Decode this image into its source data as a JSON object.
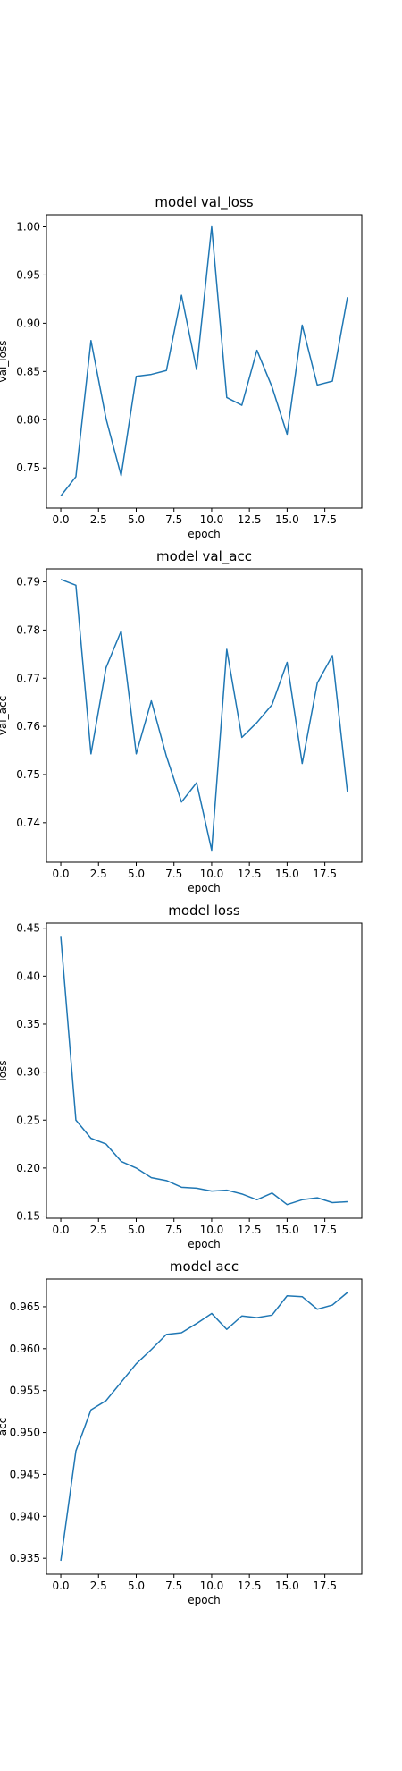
{
  "chart_data": [
    {
      "type": "line",
      "title": "model val_loss",
      "xlabel": "epoch",
      "ylabel": "val_loss",
      "xlim": [
        -0.95,
        19.95
      ],
      "ylim": [
        0.7085,
        1.0125
      ],
      "xticks": [
        "0.0",
        "2.5",
        "5.0",
        "7.5",
        "10.0",
        "12.5",
        "15.0",
        "17.5"
      ],
      "yticks": [
        "0.75",
        "0.80",
        "0.85",
        "0.90",
        "0.95",
        "1.00"
      ],
      "series": [
        {
          "color": "#1f77b4",
          "x": [
            0,
            1,
            2,
            3,
            4,
            5,
            6,
            7,
            8,
            9,
            10,
            11,
            12,
            13,
            14,
            15,
            16,
            17,
            18,
            19
          ],
          "values": [
            0.721,
            0.741,
            0.882,
            0.801,
            0.742,
            0.845,
            0.847,
            0.851,
            0.929,
            0.852,
            1.0,
            0.823,
            0.815,
            0.872,
            0.834,
            0.785,
            0.898,
            0.836,
            0.84,
            0.927
          ]
        }
      ]
    },
    {
      "type": "line",
      "title": "model val_acc",
      "xlabel": "epoch",
      "ylabel": "val_acc",
      "xlim": [
        -0.95,
        19.95
      ],
      "ylim": [
        0.7318,
        0.7927
      ],
      "xticks": [
        "0.0",
        "2.5",
        "5.0",
        "7.5",
        "10.0",
        "12.5",
        "15.0",
        "17.5"
      ],
      "yticks": [
        "0.74",
        "0.75",
        "0.76",
        "0.77",
        "0.78",
        "0.79"
      ],
      "series": [
        {
          "color": "#1f77b4",
          "x": [
            0,
            1,
            2,
            3,
            4,
            5,
            6,
            7,
            8,
            9,
            10,
            11,
            12,
            13,
            14,
            15,
            16,
            17,
            18,
            19
          ],
          "values": [
            0.7905,
            0.7893,
            0.7543,
            0.7722,
            0.7798,
            0.7543,
            0.7653,
            0.7538,
            0.7443,
            0.7483,
            0.7343,
            0.776,
            0.7577,
            0.7608,
            0.7645,
            0.7733,
            0.7523,
            0.769,
            0.7747,
            0.7463
          ]
        }
      ]
    },
    {
      "type": "line",
      "title": "model loss",
      "xlabel": "epoch",
      "ylabel": "loss",
      "xlim": [
        -0.95,
        19.95
      ],
      "ylim": [
        0.1477,
        0.4553
      ],
      "xticks": [
        "0.0",
        "2.5",
        "5.0",
        "7.5",
        "10.0",
        "12.5",
        "15.0",
        "17.5"
      ],
      "yticks": [
        "0.15",
        "0.20",
        "0.25",
        "0.30",
        "0.35",
        "0.40",
        "0.45"
      ],
      "series": [
        {
          "color": "#1f77b4",
          "x": [
            0,
            1,
            2,
            3,
            4,
            5,
            6,
            7,
            8,
            9,
            10,
            11,
            12,
            13,
            14,
            15,
            16,
            17,
            18,
            19
          ],
          "values": [
            0.441,
            0.25,
            0.231,
            0.225,
            0.207,
            0.2,
            0.19,
            0.187,
            0.18,
            0.179,
            0.176,
            0.177,
            0.173,
            0.167,
            0.174,
            0.162,
            0.167,
            0.169,
            0.164,
            0.165
          ]
        }
      ]
    },
    {
      "type": "line",
      "title": "model acc",
      "xlabel": "epoch",
      "ylabel": "acc",
      "xlim": [
        -0.95,
        19.95
      ],
      "ylim": [
        0.9331,
        0.9683
      ],
      "xticks": [
        "0.0",
        "2.5",
        "5.0",
        "7.5",
        "10.0",
        "12.5",
        "15.0",
        "17.5"
      ],
      "yticks": [
        "0.935",
        "0.940",
        "0.945",
        "0.950",
        "0.955",
        "0.960",
        "0.965"
      ],
      "series": [
        {
          "color": "#1f77b4",
          "x": [
            0,
            1,
            2,
            3,
            4,
            5,
            6,
            7,
            8,
            9,
            10,
            11,
            12,
            13,
            14,
            15,
            16,
            17,
            18,
            19
          ],
          "values": [
            0.9347,
            0.9478,
            0.9527,
            0.9538,
            0.956,
            0.9582,
            0.9599,
            0.9617,
            0.9619,
            0.963,
            0.9642,
            0.9623,
            0.9639,
            0.9637,
            0.964,
            0.9663,
            0.9662,
            0.9647,
            0.9652,
            0.9667
          ]
        }
      ]
    }
  ]
}
